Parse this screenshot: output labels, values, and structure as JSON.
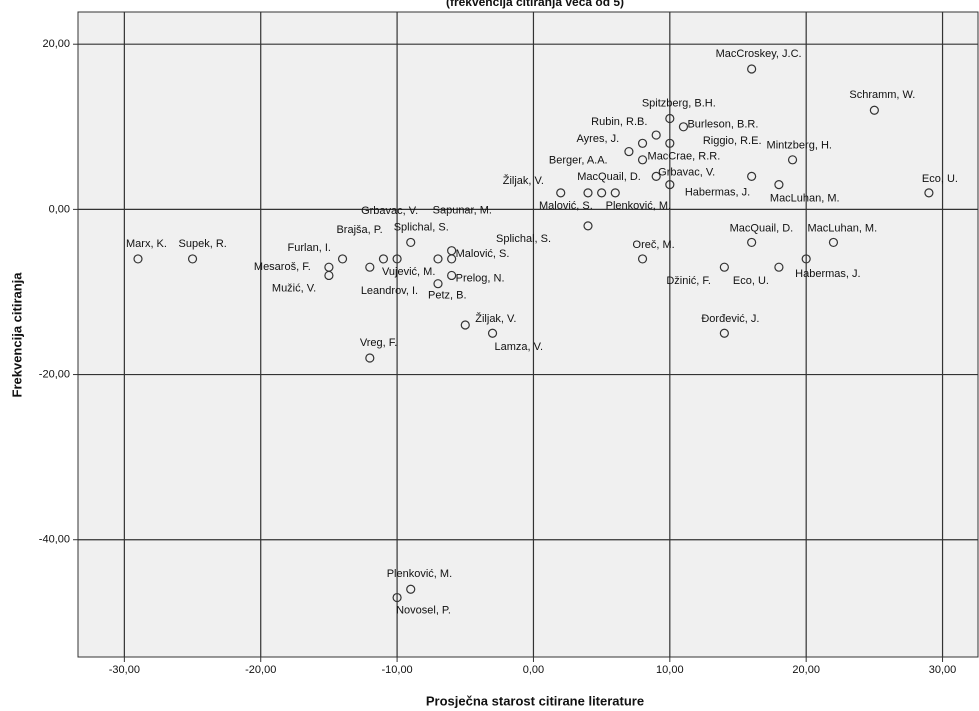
{
  "chart_data": {
    "type": "scatter",
    "title": "(frekvencija citiranja veća od 5)",
    "x_label": "Prosječna starost citirane literature",
    "y_label": "Frekvencija citiranja",
    "categories": [
      "Marx, K.",
      "Supek, R.",
      "Furlan, I.",
      "Mesaroš, F.",
      "Mužić, V.",
      "Brajša, P.",
      "Grbavac, V.",
      "Splichal, S.",
      "Leandrov, I.",
      "Vujević, M.",
      "Sapunar, M.",
      "Malović, S.",
      "Prelog, N.",
      "Petz, B.",
      "Žiljak, V.",
      "Lamza, V.",
      "Vreg, F.",
      "Plenković, M.",
      "Novosel, P.",
      "Splichal, S.",
      "Žiljak, V.",
      "Malović, S.",
      "Plenković, M.",
      "MacQuail, D.",
      "Berger, A.A.",
      "Ayres, J.",
      "Rubin, R.B.",
      "Spitzberg, B.H.",
      "Burleson, B.R.",
      "Riggio, R.E.",
      "MacCrae, R.R.",
      "Grbavac, V.",
      "Habermas, J.",
      "MacCroskey, J.C.",
      "Schramm, W.",
      "Mintzberg, H.",
      null,
      "MacLuhan, M.",
      "Eco, U.",
      "MacQuail, D.",
      "MacLuhan, M.",
      "Oreč, M.",
      "Džinić, F.",
      "Eco, U.",
      "Habermas, J.",
      "Đorđević, J."
    ],
    "x": [
      -29,
      -25,
      -14,
      -15,
      -15,
      -11,
      -10,
      -9,
      -12,
      -7,
      -6,
      -6,
      -6,
      -7,
      -5,
      -3,
      -12,
      -9,
      -10,
      4,
      2,
      4,
      5,
      6,
      7,
      8,
      9,
      10,
      11,
      10,
      8,
      9,
      10,
      16,
      25,
      19,
      16,
      18,
      29,
      16,
      22,
      8,
      14,
      18,
      20,
      14
    ],
    "values": [
      -6,
      -6,
      -6,
      -7,
      -8,
      -6,
      -6,
      -4,
      -7,
      -6,
      -5,
      -6,
      -8,
      -9,
      -14,
      -15,
      -18,
      -46,
      -47,
      -2,
      2,
      2,
      2,
      2,
      7,
      8,
      9,
      11,
      10,
      8,
      6,
      4,
      3,
      17,
      12,
      6,
      4,
      3,
      2,
      -4,
      -4,
      -6,
      -7,
      -7,
      -6,
      -15
    ],
    "color": "#333333",
    "xlim": [
      -33.4,
      32.6
    ],
    "ylim": [
      -54.2,
      23.9
    ],
    "xticks": [
      {
        "value": -30,
        "label": "-30,00"
      },
      {
        "value": -20,
        "label": "-20,00"
      },
      {
        "value": -10,
        "label": "-10,00"
      },
      {
        "value": 0,
        "label": "0,00"
      },
      {
        "value": 10,
        "label": "10,00"
      },
      {
        "value": 20,
        "label": "20,00"
      },
      {
        "value": 30,
        "label": "30,00"
      }
    ],
    "yticks": [
      {
        "value": -40,
        "label": "-40,00"
      },
      {
        "value": -20,
        "label": "-20,00"
      },
      {
        "value": 0,
        "label": "0,00"
      },
      {
        "value": 20,
        "label": "20,00"
      }
    ],
    "grid": true
  }
}
